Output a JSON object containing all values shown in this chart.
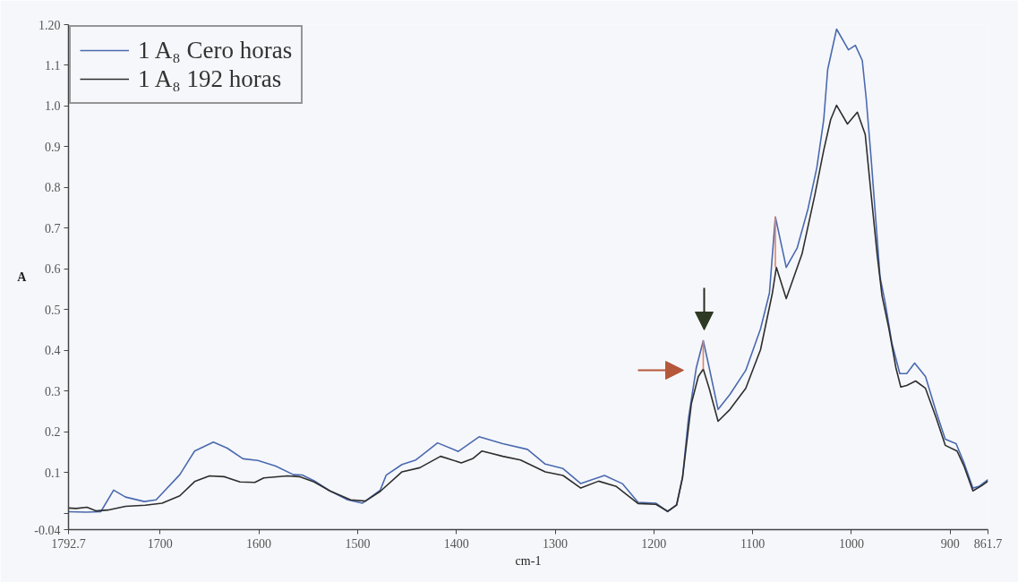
{
  "chart_data": {
    "type": "line",
    "xlabel": "cm-1",
    "ylabel": "A",
    "xlim": [
      1792.7,
      861.7
    ],
    "xticks": [
      1792.7,
      1700,
      1600,
      1500,
      1400,
      1300,
      1200,
      1100,
      1000,
      900,
      861.7
    ],
    "ylim": [
      -0.04,
      1.2
    ],
    "yticks": [
      -0.04,
      {
        "value": 0,
        "label": null
      },
      0.1,
      0.2,
      0.3,
      0.4,
      0.5,
      0.6,
      0.7,
      0.8,
      0.9,
      {
        "value": 1.0,
        "label": "1.0"
      },
      1.1,
      {
        "value": 1.2,
        "label": "1.20"
      }
    ],
    "grid": false,
    "legend": "top left",
    "line_style": "solid",
    "series": [
      {
        "name": "1 A₈ Cero horas",
        "color": "#4a6aae",
        "x": [
          1792.7,
          1775,
          1760,
          1747,
          1735,
          1716,
          1704,
          1680,
          1665,
          1646,
          1632,
          1616,
          1601,
          1583,
          1565,
          1556,
          1544,
          1528,
          1510,
          1495,
          1477,
          1471,
          1455,
          1441,
          1419,
          1398,
          1377,
          1353,
          1328,
          1310,
          1292,
          1274,
          1250,
          1232,
          1216,
          1198,
          1186,
          1177,
          1171,
          1165,
          1157,
          1150,
          1144,
          1135,
          1123,
          1107,
          1092,
          1083,
          1077,
          1066,
          1055,
          1044,
          1035,
          1028,
          1024,
          1015,
          1003,
          996,
          989,
          985,
          980,
          975,
          971,
          966,
          959,
          951,
          944,
          936,
          925,
          914,
          905,
          894,
          886,
          877,
          871,
          861.7
        ],
        "values": [
          0.004,
          0.003,
          0.004,
          0.057,
          0.04,
          0.029,
          0.033,
          0.095,
          0.153,
          0.175,
          0.16,
          0.134,
          0.13,
          0.116,
          0.095,
          0.094,
          0.08,
          0.055,
          0.033,
          0.025,
          0.057,
          0.094,
          0.12,
          0.131,
          0.173,
          0.152,
          0.188,
          0.171,
          0.157,
          0.121,
          0.11,
          0.073,
          0.093,
          0.073,
          0.027,
          0.025,
          0.004,
          0.021,
          0.088,
          0.233,
          0.358,
          0.424,
          0.358,
          0.255,
          0.292,
          0.351,
          0.453,
          0.541,
          0.728,
          0.604,
          0.651,
          0.747,
          0.849,
          0.967,
          1.09,
          1.189,
          1.138,
          1.149,
          1.112,
          1.018,
          0.87,
          0.71,
          0.58,
          0.52,
          0.418,
          0.343,
          0.343,
          0.369,
          0.336,
          0.248,
          0.182,
          0.171,
          0.124,
          0.062,
          0.066,
          0.083
        ]
      },
      {
        "name": "1 A₈ 192 horas",
        "color": "#2e2e2e",
        "x": [
          1792.7,
          1785,
          1774,
          1765,
          1753,
          1735,
          1715,
          1698,
          1680,
          1665,
          1650,
          1635,
          1619,
          1604,
          1595,
          1571,
          1559,
          1544,
          1528,
          1507,
          1492,
          1477,
          1455,
          1437,
          1416,
          1395,
          1383,
          1374,
          1353,
          1335,
          1310,
          1292,
          1274,
          1256,
          1238,
          1216,
          1198,
          1186,
          1177,
          1171,
          1162,
          1155,
          1150,
          1144,
          1135,
          1123,
          1107,
          1092,
          1080,
          1076,
          1066,
          1050,
          1037,
          1028,
          1021,
          1015,
          1004,
          994,
          986,
          980,
          974,
          969,
          962,
          955,
          950,
          944,
          935,
          925,
          914,
          905,
          893,
          886,
          877,
          868,
          861.7
        ],
        "values": [
          0.013,
          0.012,
          0.015,
          0.006,
          0.008,
          0.017,
          0.02,
          0.025,
          0.043,
          0.078,
          0.092,
          0.09,
          0.077,
          0.076,
          0.087,
          0.092,
          0.09,
          0.077,
          0.055,
          0.033,
          0.03,
          0.054,
          0.102,
          0.112,
          0.14,
          0.124,
          0.135,
          0.153,
          0.14,
          0.131,
          0.102,
          0.093,
          0.062,
          0.079,
          0.066,
          0.024,
          0.022,
          0.005,
          0.02,
          0.088,
          0.27,
          0.336,
          0.354,
          0.307,
          0.226,
          0.255,
          0.307,
          0.402,
          0.541,
          0.604,
          0.527,
          0.637,
          0.782,
          0.892,
          0.967,
          1.002,
          0.956,
          0.985,
          0.93,
          0.782,
          0.637,
          0.534,
          0.453,
          0.358,
          0.31,
          0.314,
          0.325,
          0.307,
          0.233,
          0.167,
          0.153,
          0.116,
          0.055,
          0.068,
          0.079
        ]
      },
      {
        "color": "#e0826a",
        "x": [
          1150,
          1150
        ],
        "values": [
          0.354,
          0.424
        ]
      },
      {
        "color": "#e0826a",
        "x": [
          1077,
          1077
        ],
        "values": [
          0.604,
          0.728
        ]
      }
    ]
  }
}
